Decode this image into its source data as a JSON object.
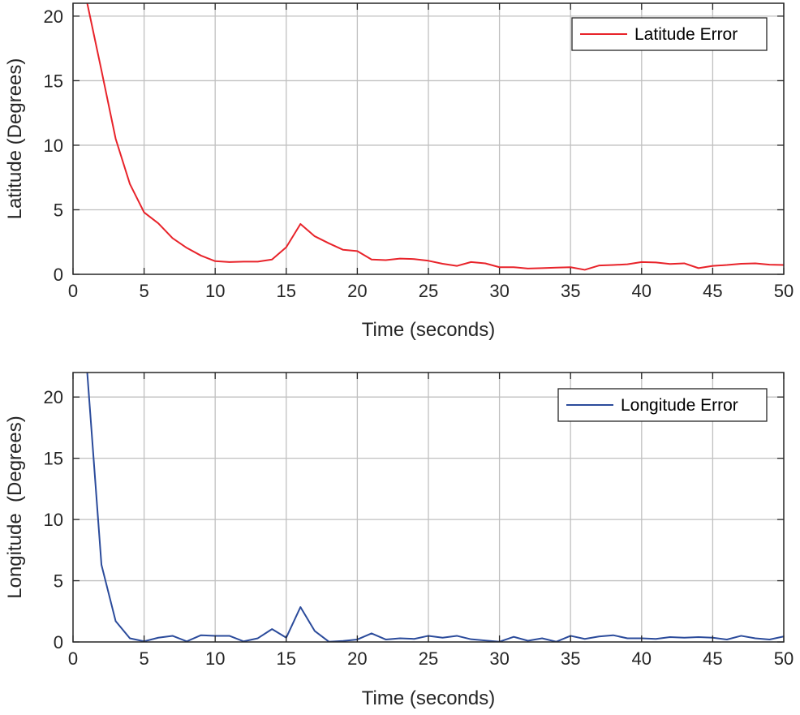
{
  "chart_data": [
    {
      "type": "line",
      "xlabel": "Time (seconds)",
      "ylabel": "Latitude (Degrees)",
      "xlim": [
        0,
        50
      ],
      "ylim": [
        0,
        21
      ],
      "xticks": [
        0,
        5,
        10,
        15,
        20,
        25,
        30,
        35,
        40,
        45,
        50
      ],
      "yticks": [
        0,
        5,
        10,
        15,
        20
      ],
      "grid": true,
      "legend_position": "top-right",
      "series": [
        {
          "name": "Latitude Error",
          "color": "#e8232a",
          "x": [
            1,
            2,
            3,
            4,
            5,
            6,
            7,
            8,
            9,
            10,
            11,
            12,
            13,
            14,
            15,
            16,
            17,
            18,
            19,
            20,
            21,
            22,
            23,
            24,
            25,
            26,
            27,
            28,
            29,
            30,
            31,
            32,
            33,
            34,
            35,
            36,
            37,
            38,
            39,
            40,
            41,
            42,
            43,
            44,
            45,
            46,
            47,
            48,
            49,
            50
          ],
          "y": [
            21,
            15.8,
            10.5,
            7.0,
            4.8,
            3.95,
            2.8,
            2.05,
            1.45,
            1.02,
            0.95,
            0.98,
            0.98,
            1.15,
            2.1,
            3.9,
            2.95,
            2.4,
            1.9,
            1.8,
            1.15,
            1.1,
            1.22,
            1.18,
            1.05,
            0.82,
            0.65,
            0.95,
            0.85,
            0.55,
            0.55,
            0.45,
            0.48,
            0.52,
            0.55,
            0.35,
            0.68,
            0.72,
            0.78,
            0.95,
            0.92,
            0.8,
            0.85,
            0.48,
            0.65,
            0.72,
            0.82,
            0.85,
            0.75,
            0.72
          ]
        }
      ]
    },
    {
      "type": "line",
      "xlabel": "Time (seconds)",
      "ylabel": "Longitude  (Degrees)",
      "xlim": [
        0,
        50
      ],
      "ylim": [
        0,
        22
      ],
      "xticks": [
        0,
        5,
        10,
        15,
        20,
        25,
        30,
        35,
        40,
        45,
        50
      ],
      "yticks": [
        0,
        5,
        10,
        15,
        20
      ],
      "grid": true,
      "legend_position": "top-right",
      "series": [
        {
          "name": "Longitude Error",
          "color": "#2b4b9b",
          "x": [
            1,
            2,
            3,
            4,
            5,
            6,
            7,
            8,
            9,
            10,
            11,
            12,
            13,
            14,
            15,
            16,
            17,
            18,
            19,
            20,
            21,
            22,
            23,
            24,
            25,
            26,
            27,
            28,
            29,
            30,
            31,
            32,
            33,
            34,
            35,
            36,
            37,
            38,
            39,
            40,
            41,
            42,
            43,
            44,
            45,
            46,
            47,
            48,
            49,
            50
          ],
          "y": [
            22,
            6.3,
            1.7,
            0.3,
            0.05,
            0.35,
            0.5,
            0.05,
            0.55,
            0.5,
            0.5,
            0.05,
            0.3,
            1.05,
            0.35,
            2.85,
            0.9,
            0.02,
            0.08,
            0.2,
            0.7,
            0.2,
            0.3,
            0.25,
            0.5,
            0.35,
            0.5,
            0.22,
            0.12,
            0.02,
            0.42,
            0.1,
            0.3,
            0.02,
            0.5,
            0.25,
            0.45,
            0.55,
            0.3,
            0.3,
            0.25,
            0.4,
            0.35,
            0.4,
            0.35,
            0.2,
            0.5,
            0.3,
            0.2,
            0.45
          ]
        }
      ]
    }
  ]
}
